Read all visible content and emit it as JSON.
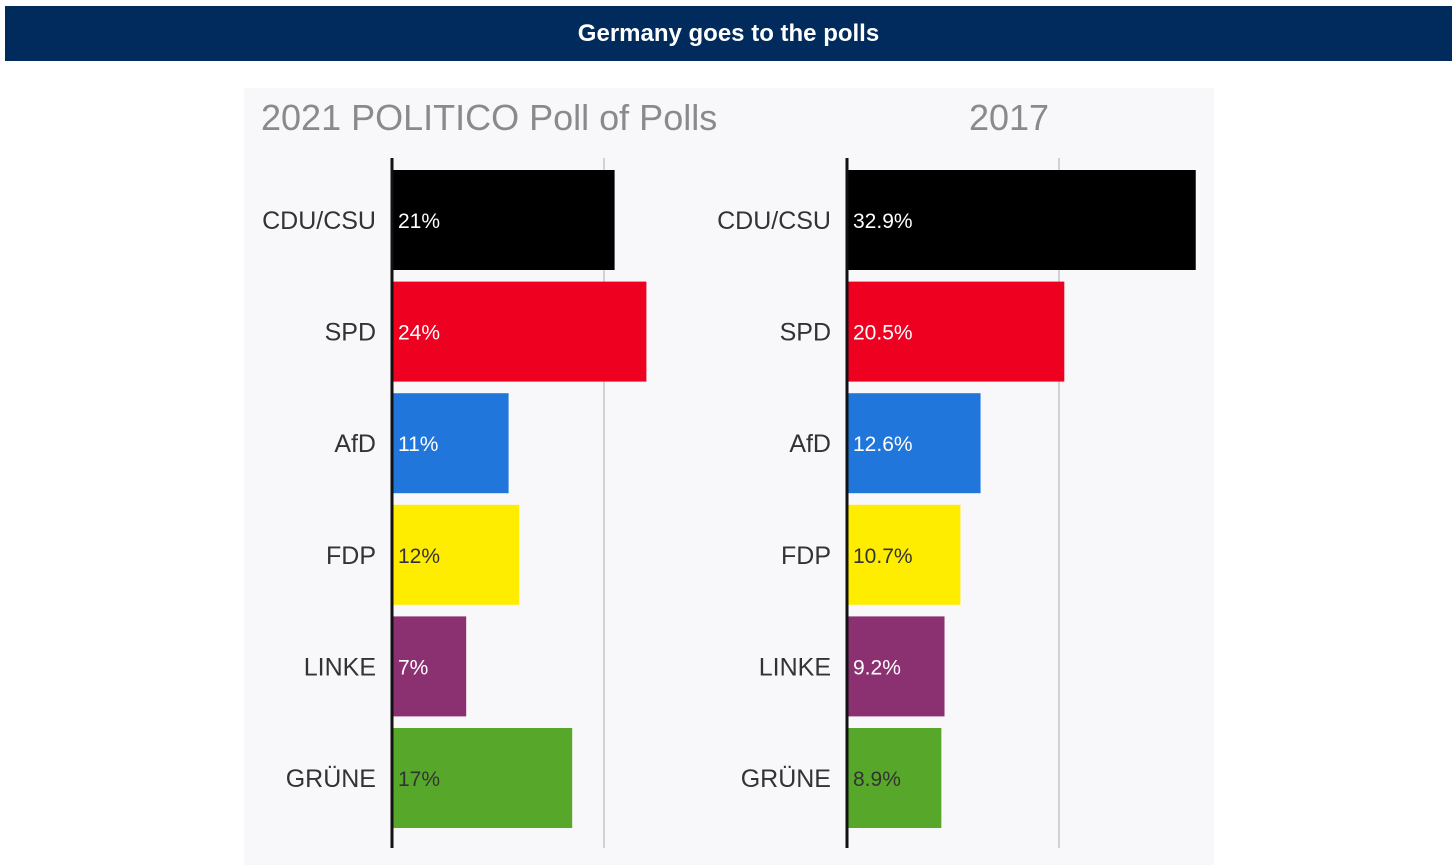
{
  "header": {
    "title": "Germany goes to the polls",
    "background": "#002b5c"
  },
  "chart_data": [
    {
      "type": "bar",
      "orientation": "horizontal",
      "title": "2021 POLITICO Poll of Polls",
      "categories": [
        "CDU/CSU",
        "SPD",
        "AfD",
        "FDP",
        "LINKE",
        "GRÜNE"
      ],
      "values": [
        21,
        24,
        11,
        12,
        7,
        17
      ],
      "labels": [
        "21%",
        "24%",
        "11%",
        "12%",
        "7%",
        "17%"
      ],
      "colors": [
        "#000000",
        "#ee0021",
        "#2176dc",
        "#ffed00",
        "#8b3070",
        "#57a82a"
      ],
      "label_colors": [
        "#ffffff",
        "#ffffff",
        "#ffffff",
        "#333333",
        "#ffffff",
        "#333333"
      ],
      "xlim": [
        0,
        35
      ],
      "gridlines": [
        20
      ]
    },
    {
      "type": "bar",
      "orientation": "horizontal",
      "title": "2017",
      "categories": [
        "CDU/CSU",
        "SPD",
        "AfD",
        "FDP",
        "LINKE",
        "GRÜNE"
      ],
      "values": [
        32.9,
        20.5,
        12.6,
        10.7,
        9.2,
        8.9
      ],
      "labels": [
        "32.9%",
        "20.5%",
        "12.6%",
        "10.7%",
        "9.2%",
        "8.9%"
      ],
      "colors": [
        "#000000",
        "#ee0021",
        "#2176dc",
        "#ffed00",
        "#8b3070",
        "#57a82a"
      ],
      "label_colors": [
        "#ffffff",
        "#ffffff",
        "#ffffff",
        "#333333",
        "#ffffff",
        "#333333"
      ],
      "xlim": [
        0,
        35
      ],
      "gridlines": [
        20
      ]
    }
  ]
}
